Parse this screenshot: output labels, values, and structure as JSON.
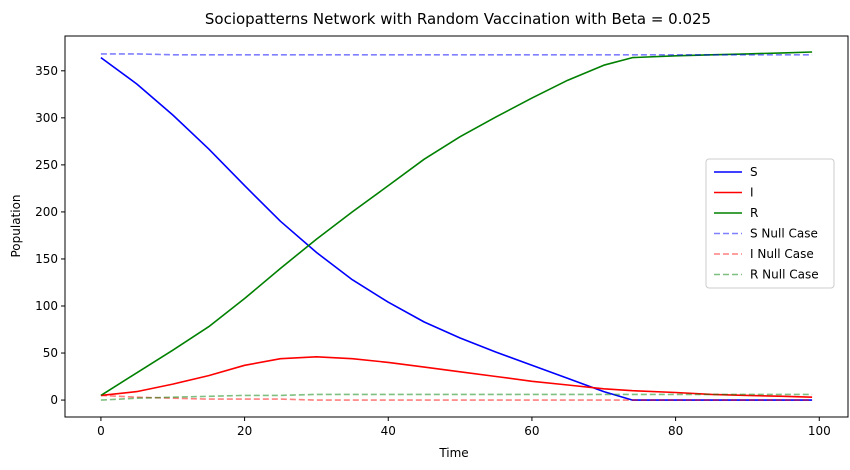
{
  "chart_data": {
    "type": "line",
    "title": "Sociopatterns Network with Random Vaccination with Beta = 0.025",
    "xlabel": "Time",
    "ylabel": "Population",
    "xlim": [
      -5,
      104
    ],
    "ylim": [
      -18,
      387
    ],
    "xticks": [
      0,
      20,
      40,
      60,
      80,
      100
    ],
    "yticks": [
      0,
      50,
      100,
      150,
      200,
      250,
      300,
      350
    ],
    "legend_position": "center-right",
    "x": [
      0,
      5,
      10,
      15,
      20,
      25,
      30,
      35,
      40,
      45,
      50,
      55,
      60,
      65,
      70,
      74,
      80,
      85,
      90,
      95,
      99
    ],
    "series": [
      {
        "name": "S",
        "color": "#0000ff",
        "style": "solid",
        "opacity": 1,
        "values": [
          364,
          336,
          303,
          267,
          228,
          190,
          157,
          128,
          104,
          83,
          66,
          51,
          37,
          23,
          9,
          0,
          0,
          0,
          0,
          0,
          0
        ]
      },
      {
        "name": "I",
        "color": "#ff0000",
        "style": "solid",
        "opacity": 1,
        "values": [
          5,
          9,
          17,
          26,
          37,
          44,
          46,
          44,
          40,
          35,
          30,
          25,
          20,
          16,
          12,
          10,
          8,
          6,
          5,
          4,
          3
        ]
      },
      {
        "name": "R",
        "color": "#008000",
        "style": "solid",
        "opacity": 1,
        "values": [
          5,
          29,
          53,
          78,
          108,
          140,
          171,
          200,
          228,
          256,
          280,
          301,
          321,
          340,
          356,
          364,
          366,
          367,
          368,
          369,
          370
        ]
      },
      {
        "name": "S Null Case",
        "color": "#0000ff",
        "style": "dashed",
        "opacity": 0.5,
        "values": [
          368,
          368,
          367,
          367,
          367,
          367,
          367,
          367,
          367,
          367,
          367,
          367,
          367,
          367,
          367,
          367,
          367,
          367,
          367,
          367,
          367
        ]
      },
      {
        "name": "I Null Case",
        "color": "#ff0000",
        "style": "dashed",
        "opacity": 0.5,
        "values": [
          5,
          3,
          2,
          1,
          1,
          1,
          0,
          0,
          0,
          0,
          0,
          0,
          0,
          0,
          0,
          0,
          0,
          0,
          0,
          0,
          0
        ]
      },
      {
        "name": "R Null Case",
        "color": "#008000",
        "style": "dashed",
        "opacity": 0.5,
        "values": [
          0,
          2,
          3,
          4,
          5,
          5,
          6,
          6,
          6,
          6,
          6,
          6,
          6,
          6,
          6,
          6,
          6,
          6,
          6,
          6,
          6
        ]
      }
    ]
  }
}
